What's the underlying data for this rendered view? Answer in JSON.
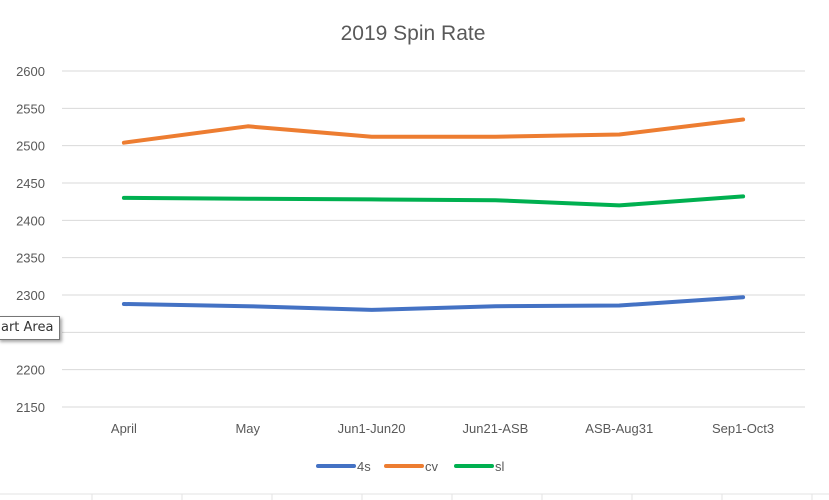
{
  "chart_data": {
    "type": "line",
    "title": "2019 Spin Rate",
    "categories": [
      "April",
      "May",
      "Jun1-Jun20",
      "Jun21-ASB",
      "ASB-Aug31",
      "Sep1-Oct3"
    ],
    "yticks": [
      "2150",
      "2200",
      "2250",
      "2300",
      "2350",
      "2400",
      "2450",
      "2500",
      "2550",
      "2600"
    ],
    "ylim": [
      2150,
      2600
    ],
    "grid": true,
    "legend_position": "bottom",
    "series": [
      {
        "name": "4s",
        "color": "#4472C4",
        "values": [
          2288,
          2285,
          2280,
          2285,
          2286,
          2297
        ]
      },
      {
        "name": "cv",
        "color": "#ED7D31",
        "values": [
          2504,
          2526,
          2512,
          2512,
          2515,
          2535
        ]
      },
      {
        "name": "sl",
        "color": "#00B050",
        "values": [
          2430,
          2429,
          2428,
          2427,
          2420,
          2432
        ]
      }
    ]
  },
  "tooltip": {
    "text": "art Area"
  }
}
